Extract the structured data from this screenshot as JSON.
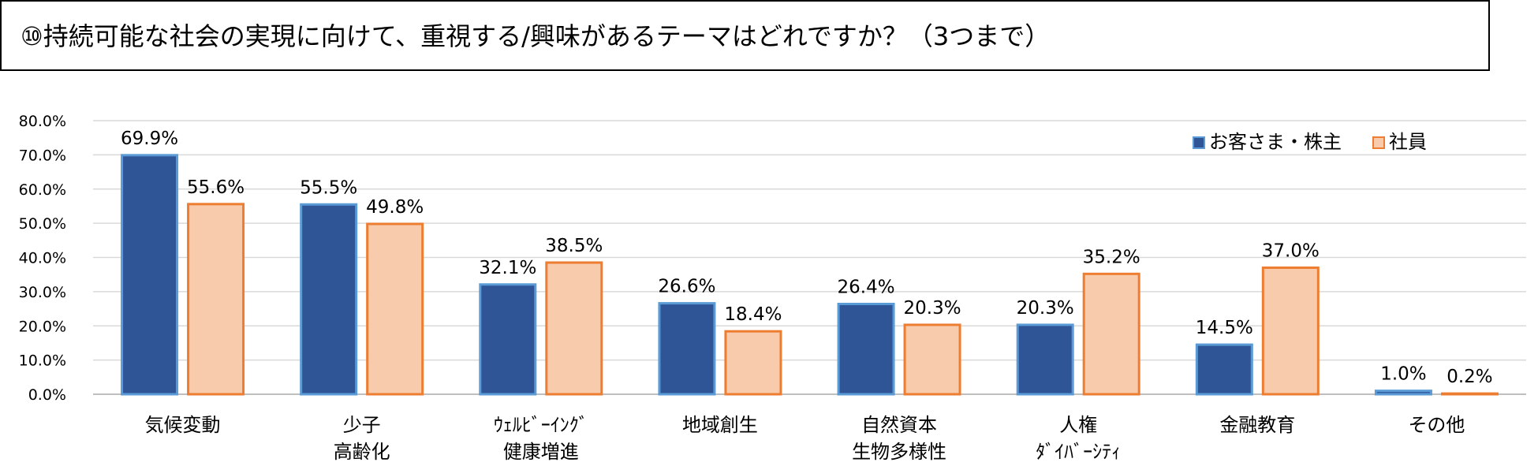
{
  "title": "⑩持続可能な社会の実現に向けて、重視する/興味があるテーマはどれですか？（3つまで）",
  "colors": {
    "series1": "#2F5597",
    "series1_edge": "#5B9BD5",
    "series2": "#F8CBAD",
    "series2_edge": "#ED7D31",
    "grid": "#D9D9D9",
    "axis": "#BFBFBF"
  },
  "chart_data": {
    "type": "bar",
    "categories": [
      [
        "気候変動"
      ],
      [
        "少子",
        "高齢化"
      ],
      [
        "ｳｪﾙﾋﾞｰｲﾝｸﾞ",
        "健康増進"
      ],
      [
        "地域創生"
      ],
      [
        "自然資本",
        "生物多様性"
      ],
      [
        "人権",
        "ﾀﾞｲﾊﾞｰｼﾃｨ"
      ],
      [
        "金融教育"
      ],
      [
        "その他"
      ]
    ],
    "series": [
      {
        "name": "お客さま・株主",
        "values": [
          69.9,
          55.5,
          32.1,
          26.6,
          26.4,
          20.3,
          14.5,
          1.0
        ],
        "labels": [
          "69.9%",
          "55.5%",
          "32.1%",
          "26.6%",
          "26.4%",
          "20.3%",
          "14.5%",
          "1.0%"
        ]
      },
      {
        "name": "社員",
        "values": [
          55.6,
          49.8,
          38.5,
          18.4,
          20.3,
          35.2,
          37.0,
          0.2
        ],
        "labels": [
          "55.6%",
          "49.8%",
          "38.5%",
          "18.4%",
          "20.3%",
          "35.2%",
          "37.0%",
          "0.2%"
        ]
      }
    ],
    "yticks": [
      "0.0%",
      "10.0%",
      "20.0%",
      "30.0%",
      "40.0%",
      "50.0%",
      "60.0%",
      "70.0%",
      "80.0%"
    ],
    "ylim": [
      0,
      80
    ],
    "grid": true,
    "legend": "top-right"
  }
}
